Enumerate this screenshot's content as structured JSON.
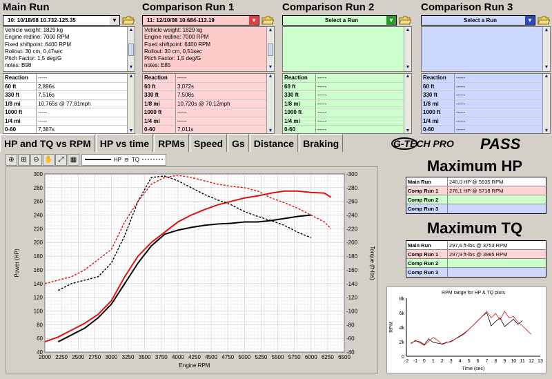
{
  "runs": [
    {
      "title": "Main Run",
      "selected": "10:  10/18/08 10.732-125.35",
      "bg": "#ffffff",
      "info": [
        "Vehicle weight: 1829 kg",
        "Engine redline: 7000 RPM",
        "Fixed shiftpoint: 6400 RPM",
        "Rollout: 30 cm, 0,47sec",
        "Pitch Factor: 1,5 deg/G",
        "notes: B98"
      ],
      "stats_bg": "#ffffff",
      "stats": [
        {
          "k": "Reaction",
          "v": "-----"
        },
        {
          "k": "60 ft",
          "v": "2,896s"
        },
        {
          "k": "330 ft",
          "v": "7,516s"
        },
        {
          "k": "1/8 mi",
          "v": "10,765s @ 77,81mph"
        },
        {
          "k": "1000 ft",
          "v": "-----"
        },
        {
          "k": "1/4 mi",
          "v": "-----"
        },
        {
          "k": "0-60",
          "v": "7,387s"
        }
      ]
    },
    {
      "title": "Comparison Run 1",
      "selected": "11:  12/10/08 10.684-113.19",
      "bg": "#ffcccc",
      "info": [
        "Vehicle weight: 1829 kg",
        "Engine redline: 7000 RPM",
        "Fixed shiftpoint: 6400 RPM",
        "Rollout: 30 cm, 0,51sec",
        "Pitch Factor: 1,5 deg/G",
        "notes: E85"
      ],
      "stats_bg": "#ffd4d4",
      "stats": [
        {
          "k": "Reaction",
          "v": "-----"
        },
        {
          "k": "60 ft",
          "v": "3,072s"
        },
        {
          "k": "330 ft",
          "v": "7,508s"
        },
        {
          "k": "1/8 mi",
          "v": "10,720s @ 70,12mph"
        },
        {
          "k": "1000 ft",
          "v": "-----"
        },
        {
          "k": "1/4 mi",
          "v": "-----"
        },
        {
          "k": "0-60",
          "v": "7,011s"
        }
      ]
    },
    {
      "title": "Comparison Run 2",
      "selected": "Select a Run",
      "bg": "#ccffcc",
      "info": [],
      "stats_bg": "#ccffcc",
      "stats": [
        {
          "k": "Reaction",
          "v": "-----"
        },
        {
          "k": "60 ft",
          "v": "-----"
        },
        {
          "k": "330 ft",
          "v": "-----"
        },
        {
          "k": "1/8 mi",
          "v": "-----"
        },
        {
          "k": "1000 ft",
          "v": "-----"
        },
        {
          "k": "1/4 mi",
          "v": "-----"
        },
        {
          "k": "0-60",
          "v": "-----"
        }
      ]
    },
    {
      "title": "Comparison Run 3",
      "selected": "Select a Run",
      "bg": "#ccd8ff",
      "info": [],
      "stats_bg": "#ccd8ff",
      "stats": [
        {
          "k": "Reaction",
          "v": "-----"
        },
        {
          "k": "60 ft",
          "v": "-----"
        },
        {
          "k": "330 ft",
          "v": "-----"
        },
        {
          "k": "1/8 mi",
          "v": "-----"
        },
        {
          "k": "1000 ft",
          "v": "-----"
        },
        {
          "k": "1/4 mi",
          "v": "-----"
        },
        {
          "k": "0-60",
          "v": "-----"
        }
      ]
    }
  ],
  "tabs": [
    "HP and TQ vs RPM",
    "HP vs time",
    "RPMs",
    "Speed",
    "Gs",
    "Distance",
    "Braking"
  ],
  "brand": {
    "logo": "G-TECH PRO",
    "product": "PASS"
  },
  "legend": {
    "hp": "HP",
    "tq": "TQ"
  },
  "max_hp": {
    "title": "Maximum HP",
    "rows": [
      {
        "k": "Main Run",
        "v": "240,0 HP @ 5935 RPM",
        "bg": "#ffffff"
      },
      {
        "k": "Comp Run 1",
        "v": "276,1 HP @ 5718 RPM",
        "bg": "#ffd4d4"
      },
      {
        "k": "Comp Run 2",
        "v": "",
        "bg": "#ccffcc"
      },
      {
        "k": "Comp Run 3",
        "v": "",
        "bg": "#ccd8ff"
      }
    ]
  },
  "max_tq": {
    "title": "Maximum TQ",
    "rows": [
      {
        "k": "Main Run",
        "v": "297,6 ft-lbs @ 3753 RPM",
        "bg": "#ffffff"
      },
      {
        "k": "Comp Run 1",
        "v": "297,9 ft-lbs @ 3985 RPM",
        "bg": "#ffd4d4"
      },
      {
        "k": "Comp Run 2",
        "v": "",
        "bg": "#ccffcc"
      },
      {
        "k": "Comp Run 3",
        "v": "",
        "bg": "#ccd8ff"
      }
    ]
  },
  "colors": {
    "main": "#000000",
    "comp1": "#e01010",
    "comp2_header": "#2a9b2a",
    "comp3_header": "#2a48c0",
    "comp1_header": "#e04040"
  },
  "chart_data": [
    {
      "type": "line",
      "xlabel": "Engine RPM",
      "ylabel": "Power (HP)",
      "ylabel2": "Torque (ft-lbs)",
      "xlim": [
        2000,
        6500
      ],
      "ylim": [
        40,
        300
      ],
      "ylim2": [
        40,
        300
      ],
      "xticks": [
        2000,
        2250,
        2500,
        2750,
        3000,
        3250,
        3500,
        3750,
        4000,
        4250,
        4500,
        4750,
        5000,
        5250,
        5500,
        5750,
        6000,
        6250,
        6500
      ],
      "yticks": [
        40,
        60,
        80,
        100,
        120,
        140,
        160,
        180,
        200,
        220,
        240,
        260,
        280,
        300
      ],
      "series": [
        {
          "color": "#000000",
          "style": "solid",
          "x": [
            2200,
            2400,
            2600,
            2800,
            3000,
            3200,
            3400,
            3600,
            3800,
            4000,
            4200,
            4400,
            4600,
            4800,
            5000,
            5200,
            5400,
            5600,
            5800,
            6000
          ],
          "values": [
            55,
            65,
            75,
            90,
            110,
            140,
            170,
            195,
            212,
            218,
            222,
            225,
            227,
            228,
            230,
            230,
            232,
            235,
            238,
            240
          ]
        },
        {
          "color": "#e01010",
          "style": "solid",
          "x": [
            2000,
            2200,
            2400,
            2600,
            2800,
            3000,
            3200,
            3400,
            3600,
            3800,
            4000,
            4200,
            4400,
            4600,
            4800,
            5000,
            5200,
            5400,
            5600,
            5800,
            6000,
            6200,
            6300
          ],
          "values": [
            55,
            62,
            72,
            82,
            95,
            115,
            150,
            180,
            200,
            215,
            230,
            240,
            248,
            255,
            260,
            265,
            268,
            272,
            275,
            275,
            273,
            272,
            266
          ]
        },
        {
          "color": "#000000",
          "style": "dashed",
          "x": [
            2200,
            2400,
            2600,
            2800,
            3000,
            3200,
            3400,
            3600,
            3800,
            4000,
            4200,
            4400,
            4600,
            4800,
            5000,
            5200,
            5400,
            5600,
            5800,
            6000
          ],
          "values": [
            130,
            140,
            145,
            150,
            170,
            210,
            260,
            295,
            297,
            290,
            280,
            270,
            262,
            255,
            245,
            238,
            232,
            225,
            215,
            207
          ]
        },
        {
          "color": "#e01010",
          "style": "dashed",
          "x": [
            2000,
            2200,
            2400,
            2600,
            2800,
            3000,
            3200,
            3400,
            3600,
            3800,
            4000,
            4200,
            4400,
            4600,
            4800,
            5000,
            5200,
            5400,
            5600,
            5800,
            6000,
            6200,
            6300
          ],
          "values": [
            140,
            145,
            150,
            160,
            175,
            190,
            230,
            260,
            285,
            295,
            298,
            295,
            290,
            285,
            282,
            280,
            275,
            265,
            258,
            250,
            240,
            230,
            220
          ]
        }
      ]
    },
    {
      "type": "line",
      "title": "RPM range for HP & TQ plots",
      "xlabel": "Time (sec)",
      "ylabel": "RPM",
      "xlim": [
        -2,
        13
      ],
      "ylim": [
        0,
        8000
      ],
      "xticks": [
        -2,
        -1,
        0,
        1,
        2,
        3,
        4,
        5,
        6,
        7,
        8,
        9,
        10,
        11,
        12,
        13
      ],
      "ytick_labels": [
        "0",
        "2k",
        "4k",
        "6k",
        "8k"
      ],
      "series": [
        {
          "color": "#000000",
          "x": [
            -1.5,
            -1,
            -0.5,
            0,
            0.5,
            1,
            2,
            2.5,
            3,
            3.5,
            4,
            4.5,
            5,
            5.5,
            6,
            6.5,
            7,
            7.5,
            8,
            8.5,
            9,
            9.5,
            10,
            10.5,
            11
          ],
          "values": [
            1800,
            2100,
            2000,
            1600,
            2400,
            1900,
            1700,
            1900,
            2000,
            2400,
            2800,
            3200,
            3700,
            4300,
            4900,
            5500,
            6000,
            4200,
            4800,
            5300,
            4100,
            4600,
            5100,
            4400,
            4900
          ]
        },
        {
          "color": "#e01010",
          "x": [
            -1.5,
            -1,
            0,
            1,
            1.5,
            2,
            3,
            3.5,
            4,
            4.5,
            5,
            5.5,
            6,
            6.5,
            7,
            7.5,
            8,
            8.5,
            9,
            9.5,
            10,
            10.5,
            11,
            11.5,
            12
          ],
          "values": [
            1700,
            2200,
            1500,
            2600,
            2200,
            1600,
            2100,
            2400,
            2700,
            3100,
            3700,
            4300,
            4900,
            5500,
            6200,
            5300,
            5900,
            5000,
            6200,
            5300,
            5500,
            4700,
            4200,
            3600,
            3000
          ]
        }
      ]
    }
  ]
}
